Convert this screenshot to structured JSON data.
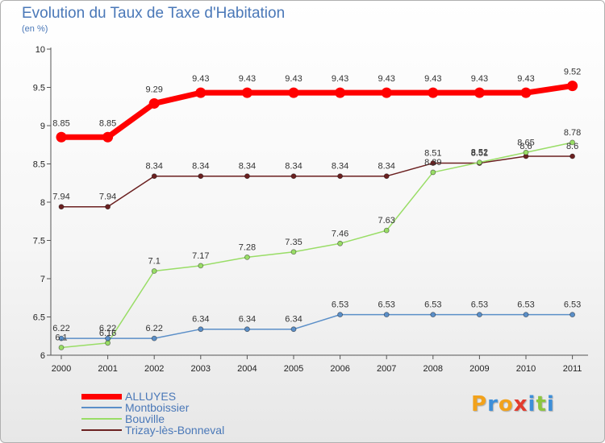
{
  "chart_data": {
    "type": "line",
    "title": "Evolution du Taux de Taxe d'Habitation",
    "subtitle": "(en %)",
    "xlabel": "",
    "ylabel": "",
    "categories": [
      "2000",
      "2001",
      "2002",
      "2003",
      "2004",
      "2005",
      "2006",
      "2007",
      "2008",
      "2009",
      "2010",
      "2011"
    ],
    "ylim": [
      6,
      10
    ],
    "yticks": [
      "6",
      "6.5",
      "7",
      "7.5",
      "8",
      "8.5",
      "9",
      "9.5",
      "10"
    ],
    "grid": false,
    "legend_position": "bottom-left",
    "series": [
      {
        "name": "ALLUYES",
        "color": "#ff0000",
        "values": [
          8.85,
          8.85,
          9.29,
          9.43,
          9.43,
          9.43,
          9.43,
          9.43,
          9.43,
          9.43,
          9.43,
          9.52
        ],
        "labels": [
          "8.85",
          "8.85",
          "9.29",
          "9.43",
          "9.43",
          "9.43",
          "9.43",
          "9.43",
          "9.43",
          "9.43",
          "9.43",
          "9.52"
        ]
      },
      {
        "name": "Montboissier",
        "color": "#5b8fc8",
        "values": [
          6.22,
          6.22,
          6.22,
          6.34,
          6.34,
          6.34,
          6.53,
          6.53,
          6.53,
          6.53,
          6.53,
          6.53
        ],
        "labels": [
          "6.22",
          "6.22",
          "6.22",
          "6.34",
          "6.34",
          "6.34",
          "6.53",
          "6.53",
          "6.53",
          "6.53",
          "6.53",
          "6.53"
        ]
      },
      {
        "name": "Bouville",
        "color": "#99dd66",
        "values": [
          6.1,
          6.16,
          7.1,
          7.17,
          7.28,
          7.35,
          7.46,
          7.63,
          8.39,
          8.52,
          8.65,
          8.78
        ],
        "labels": [
          "6.1",
          "6.16",
          "7.1",
          "7.17",
          "7.28",
          "7.35",
          "7.46",
          "7.63",
          "8.39",
          "8.52",
          "8.65",
          "8.78"
        ]
      },
      {
        "name": "Trizay-lès-Bonneval",
        "color": "#6b2020",
        "values": [
          7.94,
          7.94,
          8.34,
          8.34,
          8.34,
          8.34,
          8.34,
          8.34,
          8.51,
          8.51,
          8.6,
          8.6
        ],
        "labels": [
          "7.94",
          "7.94",
          "8.34",
          "8.34",
          "8.34",
          "8.34",
          "8.34",
          "8.34",
          "8.51",
          "8.51",
          "8.6",
          "8.6"
        ]
      }
    ]
  },
  "logo": {
    "letters": [
      "P",
      "r",
      "o",
      "x",
      "i",
      "t",
      "i"
    ],
    "colors": [
      "#f2a21b",
      "#3d8fd9",
      "#f2a21b",
      "#e23b2e",
      "#3d8fd9",
      "#8cc63f",
      "#3d8fd9"
    ]
  }
}
